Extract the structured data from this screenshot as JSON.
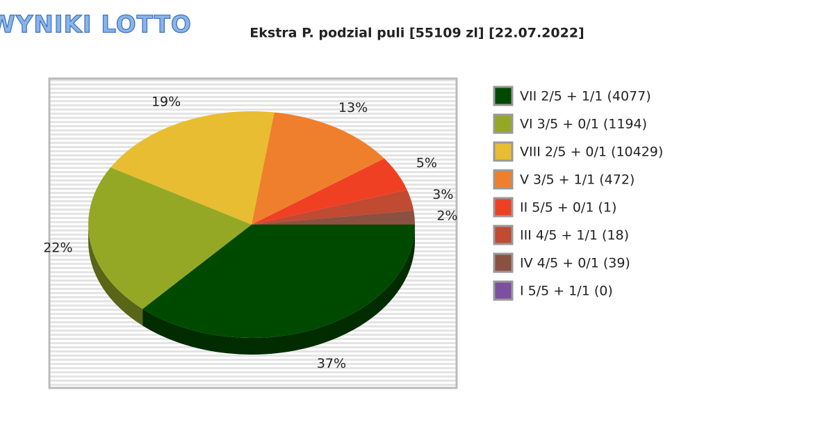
{
  "logo": "WYNIKI LOTTO",
  "chart_data": {
    "type": "pie",
    "title": "Ekstra P. podzial puli [55109 zl] [22.07.2022]",
    "categories": [
      "VII 2/5 + 1/1 (4077)",
      "VI 3/5 + 0/1 (1194)",
      "VIII 2/5 + 0/1 (10429)",
      "V 3/5 + 1/1 (472)",
      "II 5/5 + 0/1 (1)",
      "III 4/5 + 1/1 (18)",
      "IV 4/5 + 0/1 (39)",
      "I 5/5 + 1/1 (0)"
    ],
    "values": [
      37,
      22,
      19,
      13,
      5,
      3,
      2,
      0
    ],
    "value_labels": [
      "37%",
      "22%",
      "19%",
      "13%",
      "5%",
      "3%",
      "2%",
      null
    ],
    "colors": [
      "#004a00",
      "#95a826",
      "#e8bd32",
      "#ef7f2c",
      "#ef4024",
      "#c04a32",
      "#8a5040",
      "#7d4fa0"
    ],
    "legend": "right"
  }
}
